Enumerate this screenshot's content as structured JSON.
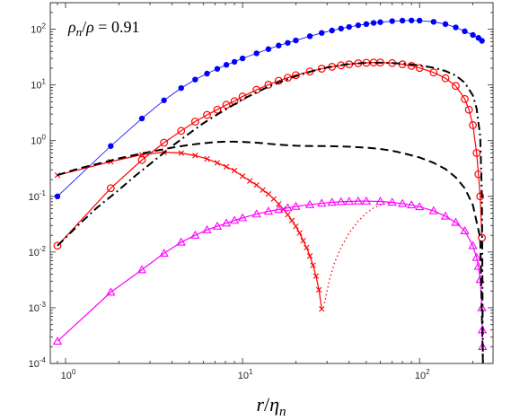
{
  "chart_data": {
    "type": "line",
    "title": "",
    "annotation": "ρ_n/ρ = 0.91",
    "xlabel": "r/η_n",
    "ylabel": "",
    "xscale": "log",
    "yscale": "log",
    "xlim": [
      0.82,
      260
    ],
    "ylim": [
      0.0001,
      300
    ],
    "grid": false,
    "legend": "none",
    "x_ticks": [
      {
        "value": 1,
        "base": "10",
        "exp": "0"
      },
      {
        "value": 10,
        "base": "10",
        "exp": "1"
      },
      {
        "value": 100,
        "base": "10",
        "exp": "2"
      }
    ],
    "y_ticks": [
      {
        "value": 0.0001,
        "base": "10",
        "exp": "-4"
      },
      {
        "value": 0.001,
        "base": "10",
        "exp": "-3"
      },
      {
        "value": 0.01,
        "base": "10",
        "exp": "-2"
      },
      {
        "value": 0.1,
        "base": "10",
        "exp": "-1"
      },
      {
        "value": 1,
        "base": "10",
        "exp": "0"
      },
      {
        "value": 10,
        "base": "10",
        "exp": "1"
      },
      {
        "value": 100,
        "base": "10",
        "exp": "2"
      }
    ],
    "series": [
      {
        "color": "#0000ff",
        "marker": "dot",
        "line": "solid",
        "x": [
          0.9,
          1.8,
          2.7,
          3.6,
          4.5,
          5.4,
          6.3,
          7.2,
          8.1,
          9,
          10,
          12,
          14,
          16,
          18,
          20,
          24,
          28,
          32,
          36,
          40,
          45,
          50,
          55,
          60,
          70,
          80,
          90,
          100,
          120,
          140,
          160,
          180,
          200,
          215,
          225
        ],
        "y": [
          0.1,
          0.8,
          2.5,
          5.3,
          8.8,
          12.5,
          16,
          19.5,
          23,
          26,
          30,
          37,
          44,
          51,
          57,
          63,
          75,
          86,
          95,
          103,
          110,
          118,
          124,
          130,
          134,
          140,
          143,
          144,
          143,
          136,
          124,
          108,
          92,
          79,
          70,
          62
        ]
      },
      {
        "color": "#ff0000",
        "marker": "circle",
        "line": "solid",
        "x": [
          0.9,
          1.8,
          2.7,
          3.6,
          4.5,
          5.4,
          6.3,
          7.2,
          8.1,
          9,
          10,
          12,
          14,
          16,
          18,
          20,
          24,
          28,
          32,
          36,
          40,
          45,
          50,
          55,
          60,
          70,
          80,
          90,
          100,
          120,
          140,
          160,
          180,
          190,
          200,
          210,
          215,
          220,
          225
        ],
        "y": [
          0.013,
          0.14,
          0.45,
          0.92,
          1.5,
          2.2,
          2.9,
          3.6,
          4.4,
          5.1,
          6.2,
          8.2,
          10.1,
          11.9,
          13.5,
          15,
          17.5,
          19.6,
          21.2,
          22.5,
          23.5,
          24.5,
          25,
          25.3,
          25.3,
          24.7,
          23.5,
          22,
          20.2,
          16.8,
          13.2,
          9.6,
          5.6,
          3.6,
          1.9,
          0.6,
          0.25,
          0.1,
          0.018
        ]
      },
      {
        "color": "#ff0000",
        "marker": "x",
        "line": "solid",
        "x": [
          0.9,
          1.8,
          2.7,
          3.6,
          4.5,
          5.4,
          6.3,
          7.2,
          8.1,
          9,
          10,
          11,
          12,
          13,
          14,
          15,
          16,
          17,
          18,
          19,
          20,
          21,
          22,
          23,
          24,
          25,
          26,
          27,
          28
        ],
        "y": [
          0.24,
          0.42,
          0.56,
          0.62,
          0.6,
          0.54,
          0.47,
          0.4,
          0.34,
          0.29,
          0.23,
          0.19,
          0.16,
          0.13,
          0.11,
          0.09,
          0.073,
          0.059,
          0.047,
          0.037,
          0.029,
          0.022,
          0.016,
          0.012,
          0.0085,
          0.0058,
          0.0037,
          0.0021,
          0.00095
        ]
      },
      {
        "color": "#ff0000",
        "marker": "none",
        "line": "dotted",
        "x": [
          29,
          31,
          33,
          36,
          40,
          45,
          50,
          55,
          60,
          65,
          70
        ],
        "y": [
          0.0012,
          0.0032,
          0.0063,
          0.012,
          0.022,
          0.036,
          0.05,
          0.062,
          0.07,
          0.075,
          0.078
        ]
      },
      {
        "color": "#ff00ff",
        "marker": "triangle",
        "line": "solid",
        "x": [
          0.9,
          1.8,
          2.7,
          3.6,
          4.5,
          5.4,
          6.3,
          7.2,
          8.1,
          9,
          10,
          12,
          14,
          16,
          18,
          20,
          24,
          28,
          32,
          36,
          40,
          45,
          50,
          60,
          70,
          80,
          90,
          100,
          120,
          140,
          160,
          180,
          200,
          210,
          215,
          220,
          225,
          226,
          227
        ],
        "y": [
          0.00025,
          0.0019,
          0.0048,
          0.0095,
          0.015,
          0.02,
          0.025,
          0.029,
          0.033,
          0.037,
          0.041,
          0.048,
          0.054,
          0.058,
          0.062,
          0.066,
          0.071,
          0.075,
          0.078,
          0.08,
          0.081,
          0.082,
          0.082,
          0.081,
          0.078,
          0.074,
          0.07,
          0.065,
          0.055,
          0.044,
          0.034,
          0.024,
          0.013,
          0.008,
          0.0055,
          0.0032,
          0.001,
          0.0004,
          0.0002
        ]
      },
      {
        "color": "#000000",
        "marker": "none",
        "line": "dashed",
        "x": [
          0.9,
          1.2,
          1.5,
          2,
          2.5,
          3,
          4,
          5,
          6,
          7,
          8,
          9,
          10,
          12,
          14,
          16,
          20,
          25,
          30,
          40,
          50,
          60,
          70,
          80,
          100,
          120,
          140,
          160,
          180,
          200,
          220,
          228
        ],
        "y": [
          0.24,
          0.32,
          0.38,
          0.48,
          0.56,
          0.63,
          0.75,
          0.84,
          0.9,
          0.94,
          0.96,
          0.96,
          0.95,
          0.92,
          0.88,
          0.85,
          0.81,
          0.8,
          0.8,
          0.78,
          0.75,
          0.71,
          0.66,
          0.6,
          0.5,
          0.4,
          0.31,
          0.22,
          0.14,
          0.07,
          0.018,
          0.0001
        ]
      },
      {
        "color": "#000000",
        "marker": "none",
        "line": "dashdot",
        "x": [
          0.9,
          1.2,
          1.5,
          2,
          2.5,
          3,
          4,
          5,
          6,
          7,
          8,
          10,
          12,
          14,
          16,
          20,
          25,
          30,
          40,
          50,
          60,
          70,
          80,
          100,
          120,
          140,
          160,
          180,
          200,
          210,
          220,
          225,
          228
        ],
        "y": [
          0.013,
          0.032,
          0.062,
          0.13,
          0.24,
          0.38,
          0.8,
          1.35,
          2.05,
          2.8,
          3.6,
          5.5,
          7.4,
          9.3,
          11.1,
          14.4,
          17.9,
          20.6,
          23.8,
          25,
          25.2,
          24.8,
          24.1,
          22.5,
          20.4,
          17.8,
          14.8,
          11,
          6.5,
          3.8,
          1.2,
          0.1,
          0.0001
        ]
      }
    ]
  }
}
